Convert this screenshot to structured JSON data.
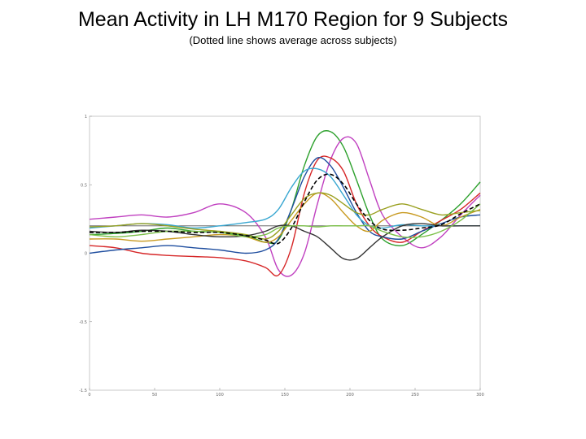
{
  "chart_data": {
    "type": "line",
    "title": "Mean Activity in LH M170 Region for 9 Subjects",
    "subtitle": "(Dotted line shows average across subjects)",
    "xlabel": "",
    "ylabel": "",
    "xlim": [
      0,
      300
    ],
    "ylim": [
      -1.5,
      1
    ],
    "grid": false,
    "legend": "none",
    "x_tick_labels": [
      "0",
      "50",
      "100",
      "150",
      "200",
      "250",
      "300"
    ],
    "y_tick_labels": [
      "1",
      "0.5",
      "0",
      "-0.5"
    ],
    "x": [
      0,
      20,
      40,
      60,
      80,
      100,
      120,
      135,
      145,
      155,
      165,
      175,
      185,
      195,
      205,
      215,
      225,
      240,
      255,
      270,
      285,
      300
    ],
    "series": [
      {
        "color": "#2ca02c",
        "values": [
          -0.08,
          -0.07,
          -0.05,
          -0.02,
          -0.05,
          -0.06,
          -0.09,
          -0.15,
          -0.13,
          0.15,
          0.55,
          0.82,
          0.86,
          0.72,
          0.42,
          0.1,
          -0.12,
          -0.18,
          -0.08,
          0.05,
          0.2,
          0.4
        ]
      },
      {
        "color": "#c040c0",
        "values": [
          0.06,
          0.08,
          0.1,
          0.08,
          0.12,
          0.2,
          0.12,
          -0.1,
          -0.4,
          -0.45,
          -0.25,
          0.2,
          0.6,
          0.8,
          0.75,
          0.42,
          0.1,
          -0.1,
          -0.2,
          -0.1,
          0.1,
          0.28
        ]
      },
      {
        "color": "#d62728",
        "values": [
          -0.18,
          -0.2,
          -0.25,
          -0.27,
          -0.28,
          -0.29,
          -0.32,
          -0.38,
          -0.45,
          -0.2,
          0.3,
          0.6,
          0.62,
          0.5,
          0.2,
          0.0,
          -0.1,
          -0.15,
          -0.05,
          0.05,
          0.15,
          0.3
        ]
      },
      {
        "color": "#1f4e9f",
        "values": [
          -0.25,
          -0.22,
          -0.2,
          -0.18,
          -0.2,
          -0.22,
          -0.25,
          -0.22,
          -0.12,
          0.15,
          0.45,
          0.62,
          0.55,
          0.35,
          0.12,
          -0.05,
          -0.1,
          -0.12,
          -0.05,
          0.02,
          0.08,
          0.1
        ]
      },
      {
        "color": "#39a7d1",
        "values": [
          -0.02,
          0.0,
          0.02,
          0.01,
          -0.02,
          0.0,
          0.03,
          0.06,
          0.15,
          0.35,
          0.5,
          0.52,
          0.45,
          0.28,
          0.1,
          0.0,
          -0.02,
          0.01,
          0.0,
          0.0,
          0.0,
          0.0
        ]
      },
      {
        "color": "#c89a20",
        "values": [
          -0.12,
          -0.12,
          -0.14,
          -0.12,
          -0.1,
          -0.08,
          -0.1,
          -0.15,
          -0.1,
          0.05,
          0.2,
          0.3,
          0.25,
          0.12,
          0.0,
          -0.05,
          0.05,
          0.12,
          0.08,
          0.0,
          0.08,
          0.15
        ]
      },
      {
        "color": "#9aa020",
        "values": [
          -0.01,
          0.0,
          0.02,
          0.0,
          -0.03,
          -0.05,
          -0.08,
          -0.12,
          -0.05,
          0.1,
          0.25,
          0.3,
          0.28,
          0.2,
          0.12,
          0.1,
          0.15,
          0.2,
          0.15,
          0.1,
          0.12,
          0.14
        ]
      },
      {
        "color": "#333333",
        "values": [
          -0.05,
          -0.06,
          -0.04,
          -0.05,
          -0.08,
          -0.1,
          -0.09,
          -0.05,
          0.0,
          0.0,
          -0.05,
          -0.1,
          -0.2,
          -0.3,
          -0.3,
          -0.2,
          -0.1,
          0.0,
          0.02,
          0.0,
          0.0,
          0.0
        ]
      },
      {
        "color": "#7cc04a",
        "values": [
          -0.08,
          -0.1,
          -0.08,
          -0.05,
          -0.05,
          -0.06,
          -0.1,
          -0.08,
          -0.02,
          0.0,
          0.0,
          -0.01,
          0.0,
          0.0,
          0.0,
          0.0,
          -0.05,
          -0.1,
          -0.1,
          -0.05,
          0.05,
          0.2
        ]
      },
      {
        "name": "average",
        "color": "#000000",
        "dashed": true,
        "values": [
          -0.06,
          -0.06,
          -0.05,
          -0.05,
          -0.06,
          -0.06,
          -0.09,
          -0.13,
          -0.16,
          -0.02,
          0.22,
          0.42,
          0.47,
          0.38,
          0.2,
          0.05,
          -0.03,
          -0.04,
          -0.02,
          0.01,
          0.11,
          0.2
        ]
      }
    ]
  }
}
